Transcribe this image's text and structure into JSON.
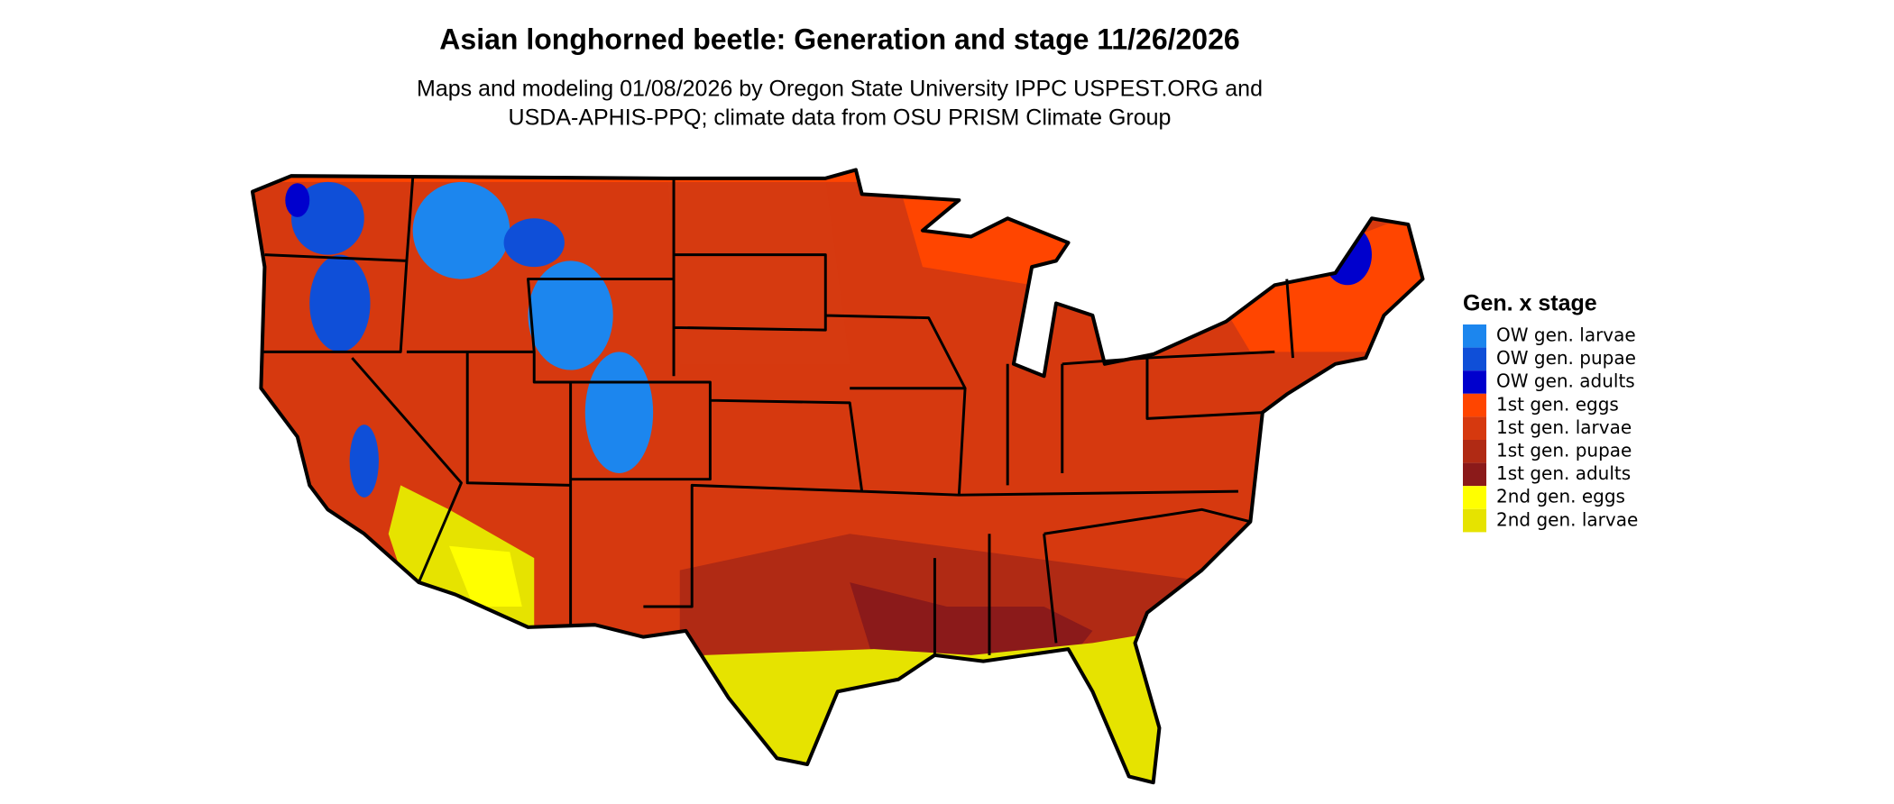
{
  "title": "Asian longhorned beetle: Generation and stage 11/26/2026",
  "subtitle": [
    "Maps and modeling 01/08/2026 by Oregon State University IPPC USPEST.ORG and",
    "USDA-APHIS-PPQ; climate data from OSU PRISM Climate Group"
  ],
  "legend": {
    "title": "Gen. x stage",
    "items": [
      {
        "label": "OW gen. larvae",
        "color": "#1c86ee"
      },
      {
        "label": "OW gen. pupae",
        "color": "#0f4fd8"
      },
      {
        "label": "OW gen. adults",
        "color": "#0000cd"
      },
      {
        "label": "1st gen. eggs",
        "color": "#ff4500"
      },
      {
        "label": "1st gen. larvae",
        "color": "#d6390f"
      },
      {
        "label": "1st gen. pupae",
        "color": "#b02a14"
      },
      {
        "label": "1st gen. adults",
        "color": "#8b1a1a"
      },
      {
        "label": "2nd gen. eggs",
        "color": "#ffff00"
      },
      {
        "label": "2nd gen. larvae",
        "color": "#e6e300"
      }
    ]
  }
}
